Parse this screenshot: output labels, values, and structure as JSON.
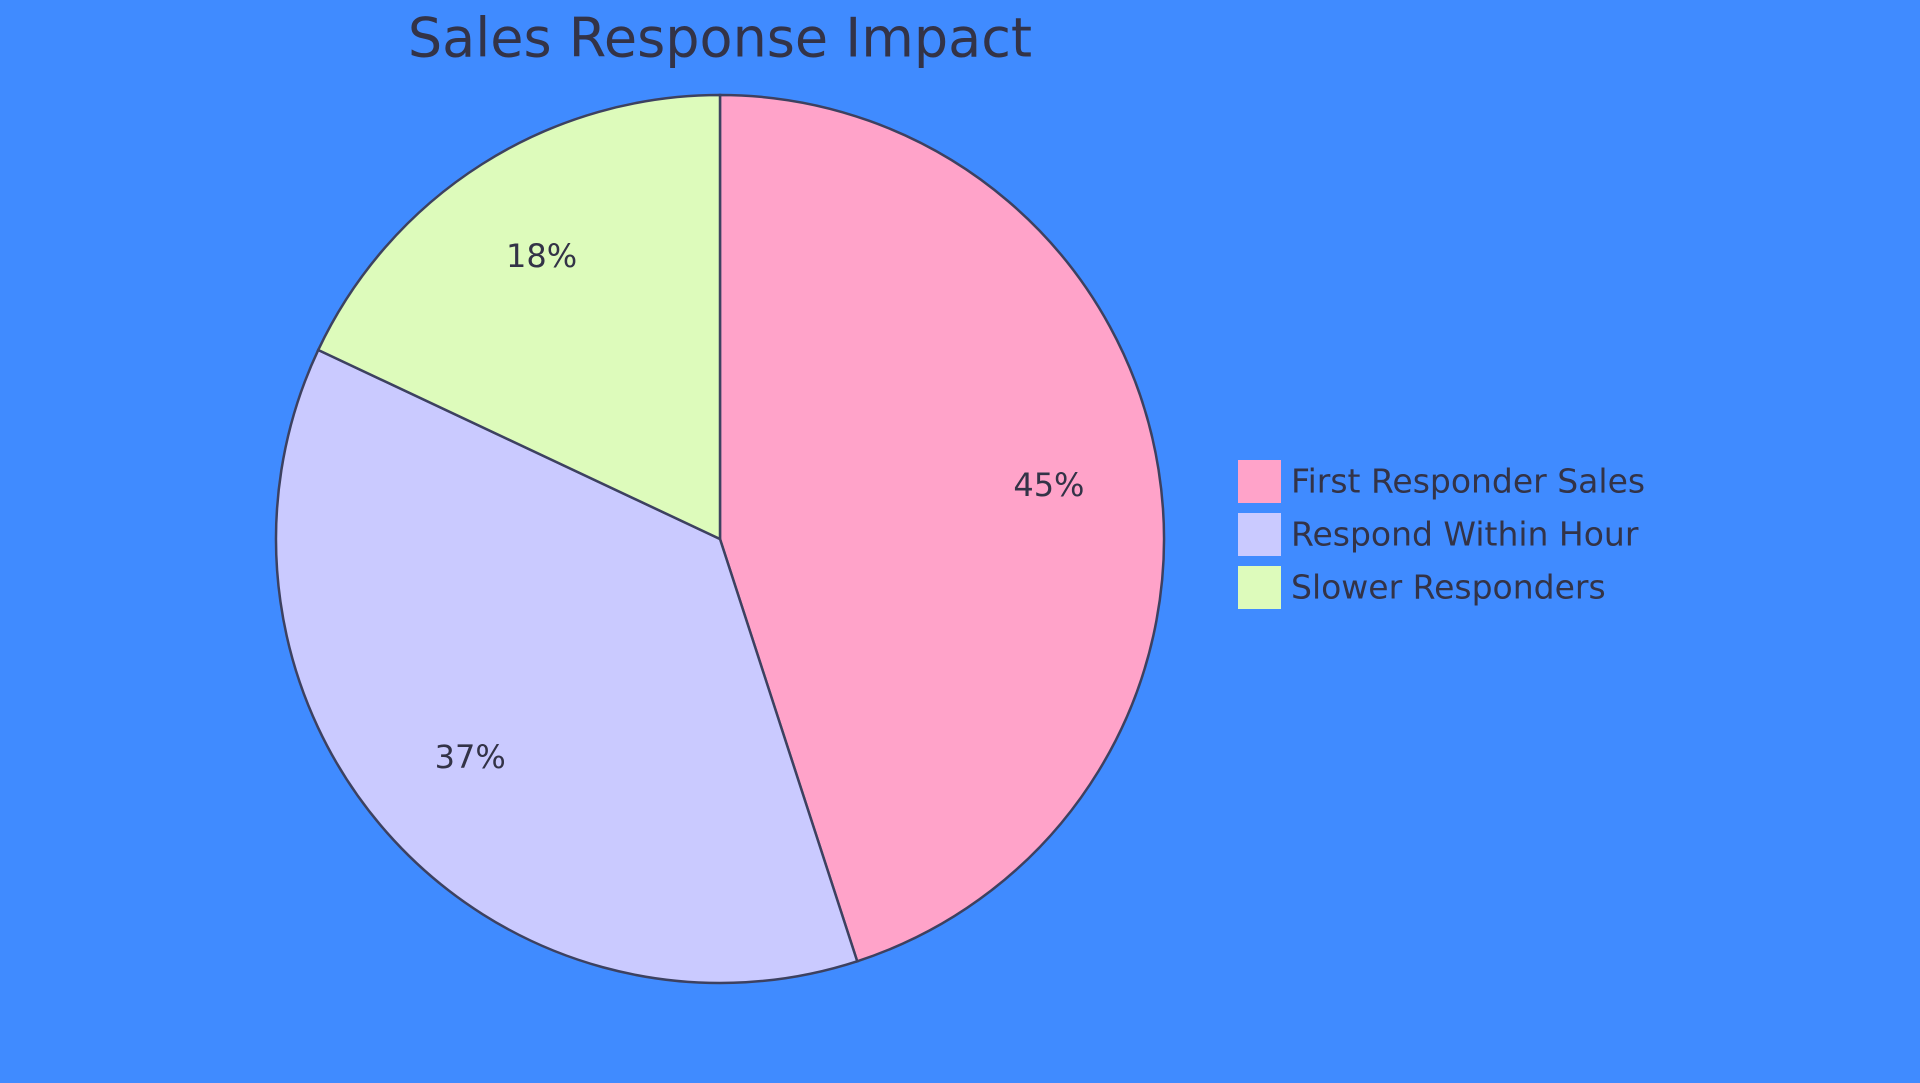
{
  "chart_data": {
    "type": "pie",
    "title": "Sales Response Impact",
    "categories": [
      "First Responder Sales",
      "Respond Within Hour",
      "Slower Responders"
    ],
    "values": [
      45,
      37,
      18
    ],
    "value_labels": [
      "45%",
      "37%",
      "18%"
    ],
    "colors": [
      "#ffa3c9",
      "#cacaff",
      "#ddfbbb"
    ],
    "legend": "right"
  }
}
